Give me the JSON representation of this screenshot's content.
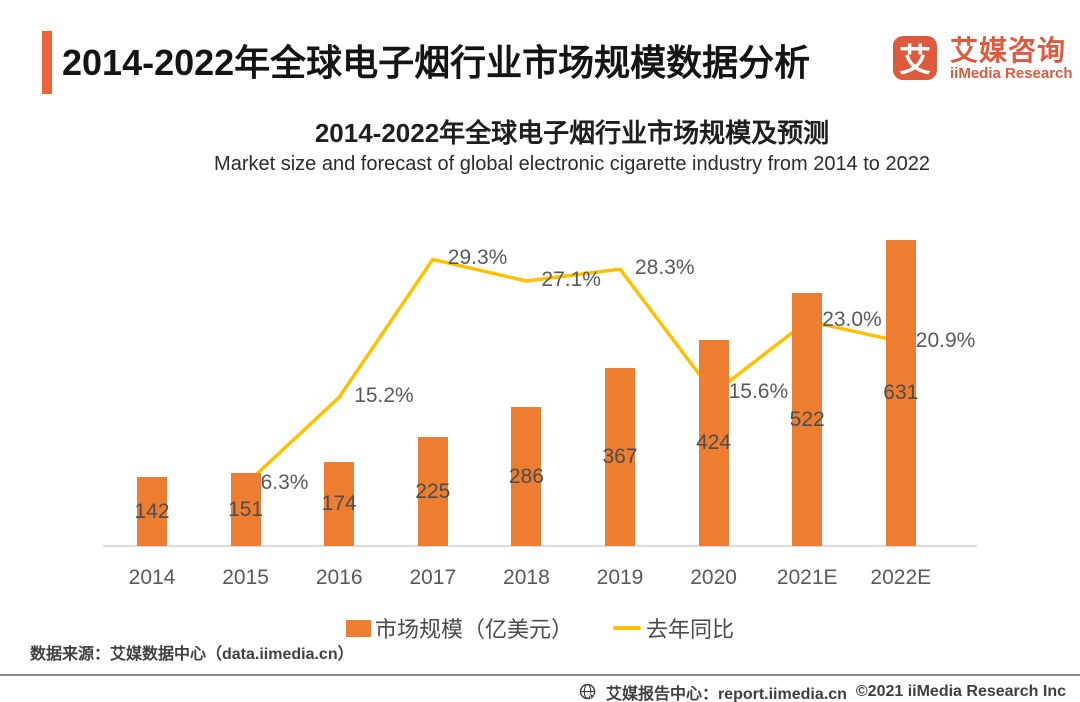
{
  "header": {
    "title": "2014-2022年全球电子烟行业市场规模数据分析",
    "logo": {
      "icon_glyph": "艾",
      "name_cn": "艾媒咨询",
      "name_en": "iiMedia Research"
    }
  },
  "chart": {
    "title_cn": "2014-2022年全球电子烟行业市场规模及预测",
    "title_en": "Market size and forecast of global electronic cigarette industry from 2014 to 2022"
  },
  "chart_data": {
    "type": "bar",
    "title": "2014-2022年全球电子烟行业市场规模及预测",
    "subtitle": "Market size and forecast of global electronic cigarette industry from 2014 to 2022",
    "categories": [
      "2014",
      "2015",
      "2016",
      "2017",
      "2018",
      "2019",
      "2020",
      "2021E",
      "2022E"
    ],
    "series": [
      {
        "name": "市场规模（亿美元）",
        "type": "bar",
        "color": "#ED7D31",
        "values": [
          142,
          151,
          174,
          225,
          286,
          367,
          424,
          522,
          631
        ]
      },
      {
        "name": "去年同比",
        "type": "line",
        "color": "#FFC000",
        "unit": "%",
        "values": [
          null,
          6.3,
          15.2,
          29.3,
          27.1,
          28.3,
          15.6,
          23.0,
          20.9
        ]
      }
    ],
    "xlabel": "",
    "ylabel": "",
    "bar_axis_range": [
      0,
      700
    ],
    "pct_axis_range": [
      0,
      30
    ],
    "grid": false,
    "legend_position": "bottom"
  },
  "footer": {
    "source": "数据来源：艾媒数据中心（data.iimedia.cn）",
    "report_center": "艾媒报告中心：report.iimedia.cn",
    "copyright": "©2021  iiMedia Research Inc"
  },
  "colors": {
    "accent_bar": "#EF6337",
    "logo": "#DD5A3F",
    "bar": "#ED7D31",
    "line": "#FFC000",
    "baseline": "#DCDCDC",
    "label_gray": "#595959"
  }
}
